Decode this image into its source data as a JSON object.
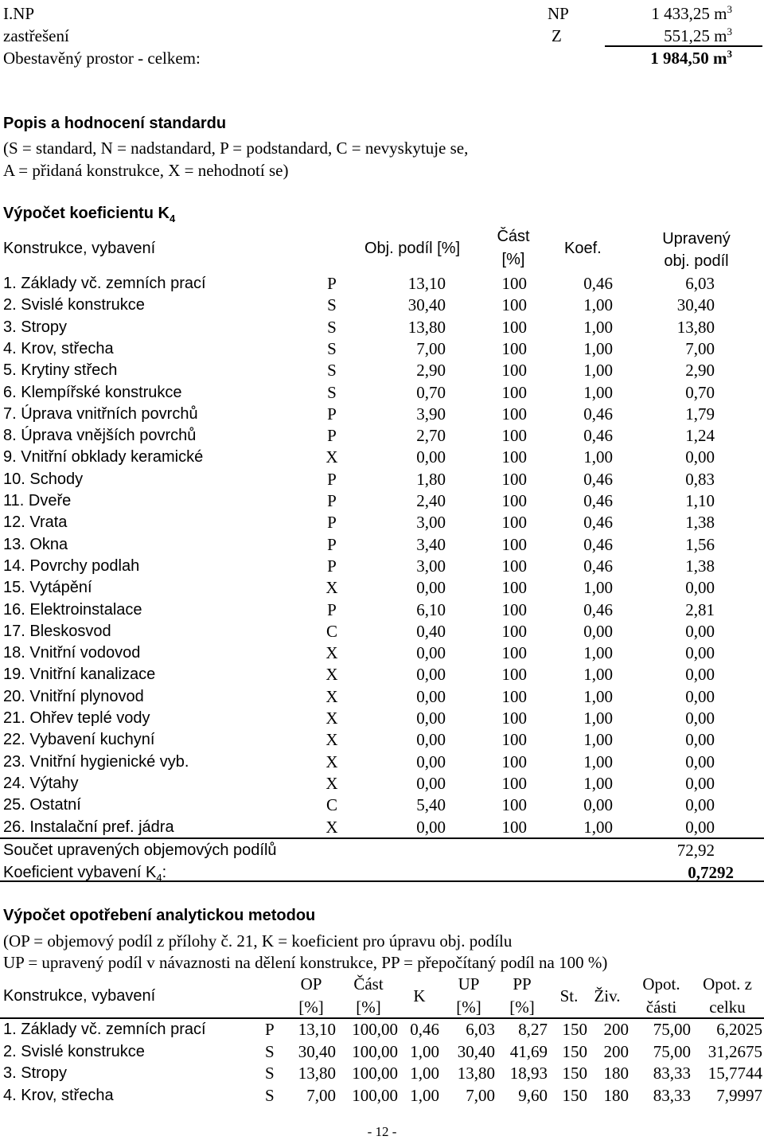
{
  "volumes": {
    "rows": [
      {
        "name": "I.NP",
        "code": "NP",
        "value": "1 433,25 m",
        "exp": "3"
      },
      {
        "name": "zastřešení",
        "code": "Z",
        "value": "551,25 m",
        "exp": "3"
      }
    ],
    "total_label": "Obestavěný prostor - celkem:",
    "total_value": "1 984,50 m",
    "total_exp": "3"
  },
  "standard": {
    "heading": "Popis a hodnocení standardu",
    "legend_line1": "(S = standard, N = nadstandard, P = podstandard, C = nevyskytuje se,",
    "legend_line2": "A = přidaná konstrukce, X = nehodnotí se)"
  },
  "k4": {
    "heading": "Výpočet koeficientu K",
    "heading_sub": "4",
    "headers": {
      "construction": "Konstrukce, vybavení",
      "share": "Obj. podíl [%]",
      "part_line1": "Část",
      "part_line2": "[%]",
      "coef": "Koef.",
      "adjusted_line1": "Upravený",
      "adjusted_line2": "obj. podíl"
    },
    "rows": [
      {
        "name": "1. Základy vč. zemních prací",
        "std": "P",
        "share": "13,10",
        "part": "100",
        "coef": "0,46",
        "adj": "6,03"
      },
      {
        "name": "2. Svislé konstrukce",
        "std": "S",
        "share": "30,40",
        "part": "100",
        "coef": "1,00",
        "adj": "30,40"
      },
      {
        "name": "3. Stropy",
        "std": "S",
        "share": "13,80",
        "part": "100",
        "coef": "1,00",
        "adj": "13,80"
      },
      {
        "name": "4. Krov, střecha",
        "std": "S",
        "share": "7,00",
        "part": "100",
        "coef": "1,00",
        "adj": "7,00"
      },
      {
        "name": "5. Krytiny střech",
        "std": "S",
        "share": "2,90",
        "part": "100",
        "coef": "1,00",
        "adj": "2,90"
      },
      {
        "name": "6. Klempířské konstrukce",
        "std": "S",
        "share": "0,70",
        "part": "100",
        "coef": "1,00",
        "adj": "0,70"
      },
      {
        "name": "7. Úprava vnitřních povrchů",
        "std": "P",
        "share": "3,90",
        "part": "100",
        "coef": "0,46",
        "adj": "1,79"
      },
      {
        "name": "8. Úprava vnějších povrchů",
        "std": "P",
        "share": "2,70",
        "part": "100",
        "coef": "0,46",
        "adj": "1,24"
      },
      {
        "name": "9. Vnitřní obklady keramické",
        "std": "X",
        "share": "0,00",
        "part": "100",
        "coef": "1,00",
        "adj": "0,00"
      },
      {
        "name": "10. Schody",
        "std": "P",
        "share": "1,80",
        "part": "100",
        "coef": "0,46",
        "adj": "0,83"
      },
      {
        "name": "11. Dveře",
        "std": "P",
        "share": "2,40",
        "part": "100",
        "coef": "0,46",
        "adj": "1,10"
      },
      {
        "name": "12. Vrata",
        "std": "P",
        "share": "3,00",
        "part": "100",
        "coef": "0,46",
        "adj": "1,38"
      },
      {
        "name": "13. Okna",
        "std": "P",
        "share": "3,40",
        "part": "100",
        "coef": "0,46",
        "adj": "1,56"
      },
      {
        "name": "14. Povrchy podlah",
        "std": "P",
        "share": "3,00",
        "part": "100",
        "coef": "0,46",
        "adj": "1,38"
      },
      {
        "name": "15. Vytápění",
        "std": "X",
        "share": "0,00",
        "part": "100",
        "coef": "1,00",
        "adj": "0,00"
      },
      {
        "name": "16. Elektroinstalace",
        "std": "P",
        "share": "6,10",
        "part": "100",
        "coef": "0,46",
        "adj": "2,81"
      },
      {
        "name": "17. Bleskosvod",
        "std": "C",
        "share": "0,40",
        "part": "100",
        "coef": "0,00",
        "adj": "0,00"
      },
      {
        "name": "18. Vnitřní vodovod",
        "std": "X",
        "share": "0,00",
        "part": "100",
        "coef": "1,00",
        "adj": "0,00"
      },
      {
        "name": "19. Vnitřní kanalizace",
        "std": "X",
        "share": "0,00",
        "part": "100",
        "coef": "1,00",
        "adj": "0,00"
      },
      {
        "name": "20. Vnitřní plynovod",
        "std": "X",
        "share": "0,00",
        "part": "100",
        "coef": "1,00",
        "adj": "0,00"
      },
      {
        "name": "21. Ohřev teplé vody",
        "std": "X",
        "share": "0,00",
        "part": "100",
        "coef": "1,00",
        "adj": "0,00"
      },
      {
        "name": "22. Vybavení kuchyní",
        "std": "X",
        "share": "0,00",
        "part": "100",
        "coef": "1,00",
        "adj": "0,00"
      },
      {
        "name": "23. Vnitřní hygienické vyb.",
        "std": "X",
        "share": "0,00",
        "part": "100",
        "coef": "1,00",
        "adj": "0,00"
      },
      {
        "name": "24. Výtahy",
        "std": "X",
        "share": "0,00",
        "part": "100",
        "coef": "1,00",
        "adj": "0,00"
      },
      {
        "name": "25. Ostatní",
        "std": "C",
        "share": "5,40",
        "part": "100",
        "coef": "0,00",
        "adj": "0,00"
      },
      {
        "name": "26. Instalační pref. jádra",
        "std": "X",
        "share": "0,00",
        "part": "100",
        "coef": "1,00",
        "adj": "0,00"
      }
    ],
    "sum_label": "Součet upravených objemových podílů",
    "sum_value": "72,92",
    "coef_label_pre": "Koeficient vybavení K",
    "coef_label_sub": "4",
    "coef_label_post": ":",
    "coef_value": "0,7292"
  },
  "wear": {
    "heading": "Výpočet opotřebení analytickou metodou",
    "note_line1": "(OP = objemový podíl z přílohy č. 21, K = koeficient pro úpravu obj. podílu",
    "note_line2": "UP = upravený podíl v návaznosti na dělení konstrukce, PP = přepočítaný podíl na 100 %)",
    "headers": {
      "construction": "Konstrukce, vybavení",
      "op_line1": "OP",
      "op_line2": "[%]",
      "part_line1": "Část",
      "part_line2": "[%]",
      "k": "K",
      "up_line1": "UP",
      "up_line2": "[%]",
      "pp_line1": "PP",
      "pp_line2": "[%]",
      "age": "St.",
      "life": "Živ.",
      "wear_part_line1": "Opot.",
      "wear_part_line2": "části",
      "wear_total_line1": "Opot. z",
      "wear_total_line2": "celku"
    },
    "rows": [
      {
        "name": "1. Základy vč. zemních prací",
        "std": "P",
        "op": "13,10",
        "part": "100,00",
        "k": "0,46",
        "up": "6,03",
        "pp": "8,27",
        "age": "150",
        "life": "200",
        "wp": "75,00",
        "wt": "6,2025"
      },
      {
        "name": "2. Svislé konstrukce",
        "std": "S",
        "op": "30,40",
        "part": "100,00",
        "k": "1,00",
        "up": "30,40",
        "pp": "41,69",
        "age": "150",
        "life": "200",
        "wp": "75,00",
        "wt": "31,2675"
      },
      {
        "name": "3. Stropy",
        "std": "S",
        "op": "13,80",
        "part": "100,00",
        "k": "1,00",
        "up": "13,80",
        "pp": "18,93",
        "age": "150",
        "life": "180",
        "wp": "83,33",
        "wt": "15,7744"
      },
      {
        "name": "4. Krov, střecha",
        "std": "S",
        "op": "7,00",
        "part": "100,00",
        "k": "1,00",
        "up": "7,00",
        "pp": "9,60",
        "age": "150",
        "life": "180",
        "wp": "83,33",
        "wt": "7,9997"
      }
    ]
  },
  "footer": {
    "page_number": "- 12 -"
  }
}
